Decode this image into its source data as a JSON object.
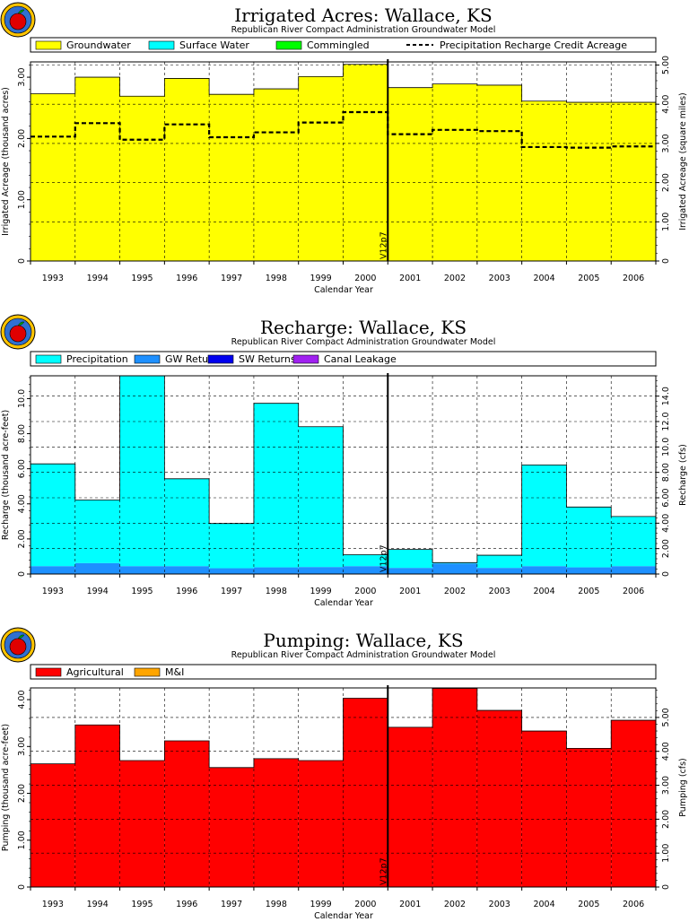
{
  "logo": "apple-logo",
  "chart_data": [
    {
      "type": "bar",
      "id": "irrigated",
      "title": "Irrigated Acres: Wallace, KS",
      "subtitle": "Republican River Compact Administration Groundwater Model",
      "xlabel": "Calendar Year",
      "ylabel": "Irrigated Acreage (thousand acres)",
      "ylabel_right": "Irrigated Acreage (square miles)",
      "categories": [
        "1993",
        "1994",
        "1995",
        "1996",
        "1997",
        "1998",
        "1999",
        "2000",
        "2001",
        "2002",
        "2003",
        "2004",
        "2005",
        "2006"
      ],
      "ylim": [
        0,
        3.25
      ],
      "yticks": [
        "0",
        "1.00",
        "2.00",
        "3.00"
      ],
      "yticks_values": [
        0,
        1,
        2,
        3
      ],
      "ylim_right": [
        0,
        5.08
      ],
      "yticks_right": [
        "0",
        "1.00",
        "2.00",
        "3.00",
        "4.00",
        "5.00"
      ],
      "yticks_right_values": [
        0,
        1,
        2,
        3,
        4,
        5
      ],
      "marker_label": "V12p7",
      "marker_after_index": 7,
      "colors": {
        "Groundwater": "#ffff00",
        "Surface Water": "#00ffff",
        "Commingled": "#00ff00"
      },
      "legend": [
        {
          "name": "Groundwater",
          "style": "box",
          "color": "#ffff00"
        },
        {
          "name": "Surface Water",
          "style": "box",
          "color": "#00ffff"
        },
        {
          "name": "Commingled",
          "style": "box",
          "color": "#00ff00"
        },
        {
          "name": "Precipitation Recharge Credit Acreage",
          "style": "dash",
          "color": "#000000"
        }
      ],
      "series": [
        {
          "name": "Groundwater",
          "values": [
            2.73,
            3.0,
            2.69,
            2.98,
            2.72,
            2.81,
            3.01,
            3.21,
            2.83,
            2.89,
            2.87,
            2.61,
            2.59,
            2.59
          ]
        },
        {
          "name": "Surface Water",
          "values": [
            0,
            0,
            0,
            0,
            0,
            0,
            0,
            0,
            0,
            0,
            0,
            0,
            0,
            0
          ]
        },
        {
          "name": "Commingled",
          "values": [
            0,
            0,
            0,
            0,
            0,
            0,
            0,
            0,
            0,
            0,
            0,
            0,
            0,
            0
          ]
        }
      ],
      "line_series": {
        "name": "Precipitation Recharge Credit Acreage",
        "values": [
          2.03,
          2.25,
          1.98,
          2.23,
          2.02,
          2.1,
          2.26,
          2.43,
          2.07,
          2.14,
          2.12,
          1.86,
          1.85,
          1.87
        ]
      },
      "grid": true,
      "legend_position": "top"
    },
    {
      "type": "bar",
      "id": "recharge",
      "title": "Recharge: Wallace, KS",
      "subtitle": "Republican River Compact Administration Groundwater Model",
      "xlabel": "Calendar Year",
      "ylabel": "Recharge (thousand acre-feet)",
      "ylabel_right": "Recharge (cfs)",
      "categories": [
        "1993",
        "1994",
        "1995",
        "1996",
        "1997",
        "1998",
        "1999",
        "2000",
        "2001",
        "2002",
        "2003",
        "2004",
        "2005",
        "2006"
      ],
      "ylim": [
        0,
        11.3
      ],
      "yticks": [
        "0",
        "2.00",
        "4.00",
        "6.00",
        "8.00",
        "10.0"
      ],
      "yticks_values": [
        0,
        2,
        4,
        6,
        8,
        10
      ],
      "ylim_right": [
        0,
        15.6
      ],
      "yticks_right": [
        "0",
        "2.00",
        "4.00",
        "6.00",
        "8.00",
        "10.0",
        "12.0",
        "14.0"
      ],
      "yticks_right_values": [
        0,
        2,
        4,
        6,
        8,
        10,
        12,
        14
      ],
      "marker_label": "V12p7",
      "marker_after_index": 7,
      "legend": [
        {
          "name": "Precipitation",
          "style": "box",
          "color": "#00ffff"
        },
        {
          "name": "GW Returns",
          "style": "box",
          "color": "#1e90ff"
        },
        {
          "name": "SW Returns",
          "style": "box",
          "color": "#0000ee"
        },
        {
          "name": "Canal Leakage",
          "style": "box",
          "color": "#a020f0"
        }
      ],
      "series": [
        {
          "name": "GW Returns",
          "color": "#1e90ff",
          "values": [
            0.45,
            0.62,
            0.45,
            0.45,
            0.33,
            0.38,
            0.4,
            0.45,
            0.35,
            0.6,
            0.35,
            0.45,
            0.38,
            0.45
          ]
        },
        {
          "name": "SW Returns",
          "color": "#0000ee",
          "values": [
            0,
            0,
            0,
            0,
            0,
            0,
            0,
            0,
            0,
            0,
            0,
            0,
            0,
            0
          ]
        },
        {
          "name": "Canal Leakage",
          "color": "#a020f0",
          "values": [
            0,
            0,
            0,
            0,
            0,
            0,
            0,
            0,
            0,
            0,
            0,
            0,
            0,
            0
          ]
        },
        {
          "name": "Precipitation",
          "color": "#00ffff",
          "values": [
            5.83,
            3.6,
            10.85,
            4.98,
            2.55,
            9.35,
            8.0,
            0.65,
            1.05,
            0.05,
            0.72,
            5.77,
            3.44,
            2.83
          ]
        }
      ],
      "grid": true,
      "legend_position": "top"
    },
    {
      "type": "bar",
      "id": "pumping",
      "title": "Pumping: Wallace, KS",
      "subtitle": "Republican River Compact Administration Groundwater Model",
      "xlabel": "Calendar Year",
      "ylabel": "Pumping (thousand acre-feet)",
      "ylabel_right": "Pumping (cfs)",
      "categories": [
        "1993",
        "1994",
        "1995",
        "1996",
        "1997",
        "1998",
        "1999",
        "2000",
        "2001",
        "2002",
        "2003",
        "2004",
        "2005",
        "2006"
      ],
      "ylim": [
        0,
        4.25
      ],
      "yticks": [
        "0",
        "1.00",
        "2.00",
        "3.00",
        "4.00"
      ],
      "yticks_values": [
        0,
        1,
        2,
        3,
        4
      ],
      "ylim_right": [
        0,
        5.87
      ],
      "yticks_right": [
        "0",
        "1.00",
        "2.00",
        "3.00",
        "4.00",
        "5.00"
      ],
      "yticks_right_values": [
        0,
        1,
        2,
        3,
        4,
        5
      ],
      "marker_label": "V12p7",
      "marker_after_index": 7,
      "legend": [
        {
          "name": "Agricultural",
          "style": "box",
          "color": "#ff0000"
        },
        {
          "name": "M&I",
          "style": "box",
          "color": "#ffa500"
        }
      ],
      "series": [
        {
          "name": "Agricultural",
          "color": "#ff0000",
          "values": [
            2.63,
            3.46,
            2.7,
            3.12,
            2.55,
            2.74,
            2.7,
            4.03,
            3.41,
            4.24,
            3.77,
            3.33,
            2.96,
            3.56
          ]
        },
        {
          "name": "M&I",
          "color": "#ffa500",
          "values": [
            0,
            0,
            0,
            0,
            0,
            0,
            0,
            0,
            0,
            0,
            0,
            0,
            0,
            0
          ]
        }
      ],
      "grid": true,
      "legend_position": "top"
    }
  ]
}
